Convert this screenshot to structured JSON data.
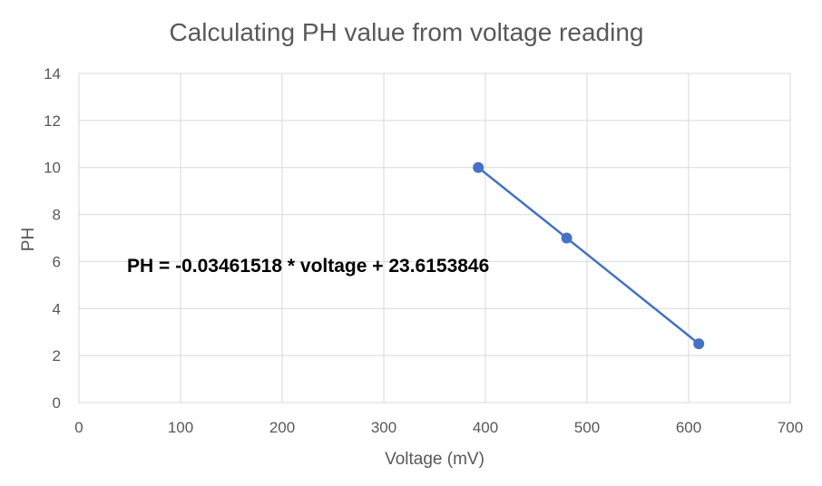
{
  "chart_data": {
    "type": "scatter",
    "title": "Calculating PH value from voltage reading",
    "xlabel": "Voltage (mV)",
    "ylabel": "PH",
    "xlim": [
      0,
      700
    ],
    "ylim": [
      0,
      14
    ],
    "xticks": [
      0,
      100,
      200,
      300,
      400,
      500,
      600,
      700
    ],
    "yticks": [
      0,
      2,
      4,
      6,
      8,
      10,
      12,
      14
    ],
    "grid": true,
    "series": [
      {
        "x": [
          393,
          480,
          610
        ],
        "y": [
          10,
          7,
          2.5
        ],
        "color": "#4472c4",
        "connected": true
      }
    ],
    "annotation": "PH = -0.03461518 * voltage + 23.6153846"
  }
}
